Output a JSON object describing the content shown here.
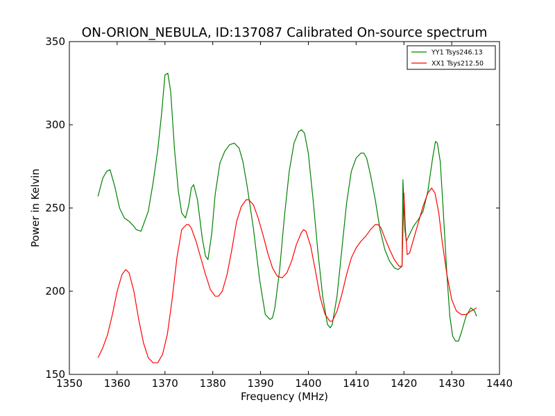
{
  "chart_data": {
    "type": "line",
    "title": "ON-ORION_NEBULA, ID:137087 Calibrated On-source spectrum",
    "xlabel": "Frequency (MHz)",
    "ylabel": "Power in Kelvin",
    "xlim": [
      1350,
      1440
    ],
    "ylim": [
      150,
      350
    ],
    "xticks": [
      "1350",
      "1360",
      "1370",
      "1380",
      "1390",
      "1400",
      "1410",
      "1420",
      "1430",
      "1440"
    ],
    "yticks": [
      "150",
      "200",
      "250",
      "300",
      "350"
    ],
    "grid": false,
    "legend_position": "top-right",
    "series": [
      {
        "name": "YY1 Tsys246.13",
        "color": "#008000",
        "x": [
          1356.0,
          1357.0,
          1357.8,
          1358.5,
          1359.5,
          1360.5,
          1361.5,
          1362.5,
          1363.5,
          1364.0,
          1365.0,
          1366.5,
          1367.5,
          1368.5,
          1369.3,
          1370.0,
          1370.6,
          1371.2,
          1372.0,
          1372.8,
          1373.5,
          1374.3,
          1375.0,
          1375.5,
          1376.0,
          1376.8,
          1377.8,
          1378.5,
          1379.0,
          1379.8,
          1380.5,
          1381.5,
          1382.5,
          1383.5,
          1384.5,
          1385.5,
          1386.3,
          1387.2,
          1388.5,
          1389.8,
          1391.0,
          1392.0,
          1392.5,
          1393.0,
          1394.0,
          1395.0,
          1396.0,
          1397.0,
          1398.0,
          1398.6,
          1399.2,
          1400.0,
          1401.0,
          1402.0,
          1403.0,
          1404.0,
          1404.6,
          1405.0,
          1406.0,
          1407.0,
          1408.0,
          1409.0,
          1410.0,
          1411.0,
          1411.6,
          1412.2,
          1413.0,
          1414.0,
          1415.0,
          1416.0,
          1417.0,
          1418.0,
          1418.8,
          1419.6,
          1419.8,
          1420.2,
          1420.5,
          1421.0,
          1422.0,
          1423.0,
          1424.0,
          1425.0,
          1426.0,
          1426.6,
          1427.0,
          1427.6,
          1428.2,
          1429.0,
          1429.6,
          1430.2,
          1430.8,
          1431.4,
          1432.0,
          1433.0,
          1434.0,
          1434.8,
          1435.2
        ],
        "y": [
          257,
          268,
          272,
          273,
          263,
          250,
          244,
          242,
          239,
          237,
          236,
          248,
          265,
          285,
          307,
          330,
          331,
          320,
          285,
          260,
          247,
          244,
          252,
          262,
          264,
          255,
          232,
          221,
          219,
          235,
          258,
          277,
          284,
          288,
          289,
          286,
          278,
          263,
          238,
          207,
          186,
          183,
          184,
          190,
          213,
          245,
          272,
          289,
          296,
          297,
          295,
          283,
          255,
          224,
          197,
          180,
          178,
          180,
          197,
          225,
          253,
          272,
          280,
          283,
          283,
          280,
          270,
          255,
          237,
          225,
          218,
          214,
          213,
          215,
          267,
          237,
          230,
          233,
          239,
          243,
          248,
          260,
          280,
          290,
          289,
          278,
          250,
          210,
          185,
          173,
          170,
          170,
          175,
          185,
          190,
          188,
          185
        ]
      },
      {
        "name": "XX1 Tsys212.50",
        "color": "#ff0000",
        "x": [
          1356.0,
          1357.0,
          1358.0,
          1359.0,
          1360.0,
          1361.0,
          1361.8,
          1362.5,
          1363.5,
          1364.5,
          1365.5,
          1366.5,
          1367.5,
          1368.5,
          1369.5,
          1370.5,
          1371.5,
          1372.5,
          1373.5,
          1374.5,
          1375.0,
          1375.5,
          1376.5,
          1377.5,
          1378.5,
          1379.5,
          1380.5,
          1381.2,
          1382.0,
          1383.0,
          1384.0,
          1385.0,
          1386.0,
          1387.0,
          1387.5,
          1388.5,
          1389.5,
          1390.5,
          1391.5,
          1392.5,
          1393.5,
          1394.5,
          1395.5,
          1396.5,
          1397.5,
          1398.5,
          1399.0,
          1399.5,
          1400.5,
          1401.5,
          1402.5,
          1403.5,
          1404.5,
          1405.0,
          1406.0,
          1407.0,
          1408.0,
          1409.0,
          1410.0,
          1411.0,
          1412.0,
          1413.0,
          1414.0,
          1414.6,
          1415.2,
          1416.0,
          1417.0,
          1418.0,
          1419.0,
          1419.6,
          1420.0,
          1420.3,
          1420.7,
          1421.2,
          1422.0,
          1423.0,
          1424.0,
          1425.0,
          1425.8,
          1426.5,
          1427.3,
          1428.0,
          1429.0,
          1430.0,
          1431.0,
          1432.0,
          1433.0,
          1434.0,
          1435.2
        ],
        "y": [
          160,
          166,
          174,
          186,
          200,
          210,
          213,
          211,
          200,
          183,
          169,
          160,
          157,
          157,
          162,
          174,
          195,
          220,
          237,
          240,
          240,
          238,
          230,
          220,
          210,
          201,
          197,
          197,
          200,
          210,
          225,
          242,
          251,
          255,
          255,
          252,
          244,
          234,
          223,
          214,
          209,
          208,
          211,
          218,
          228,
          235,
          237,
          236,
          227,
          212,
          196,
          186,
          182,
          182,
          188,
          198,
          210,
          220,
          226,
          230,
          233,
          237,
          240,
          240,
          238,
          232,
          225,
          219,
          215,
          215,
          259,
          238,
          222,
          223,
          231,
          241,
          251,
          259,
          262,
          259,
          247,
          230,
          210,
          195,
          188,
          186,
          186,
          188,
          190
        ]
      }
    ]
  }
}
